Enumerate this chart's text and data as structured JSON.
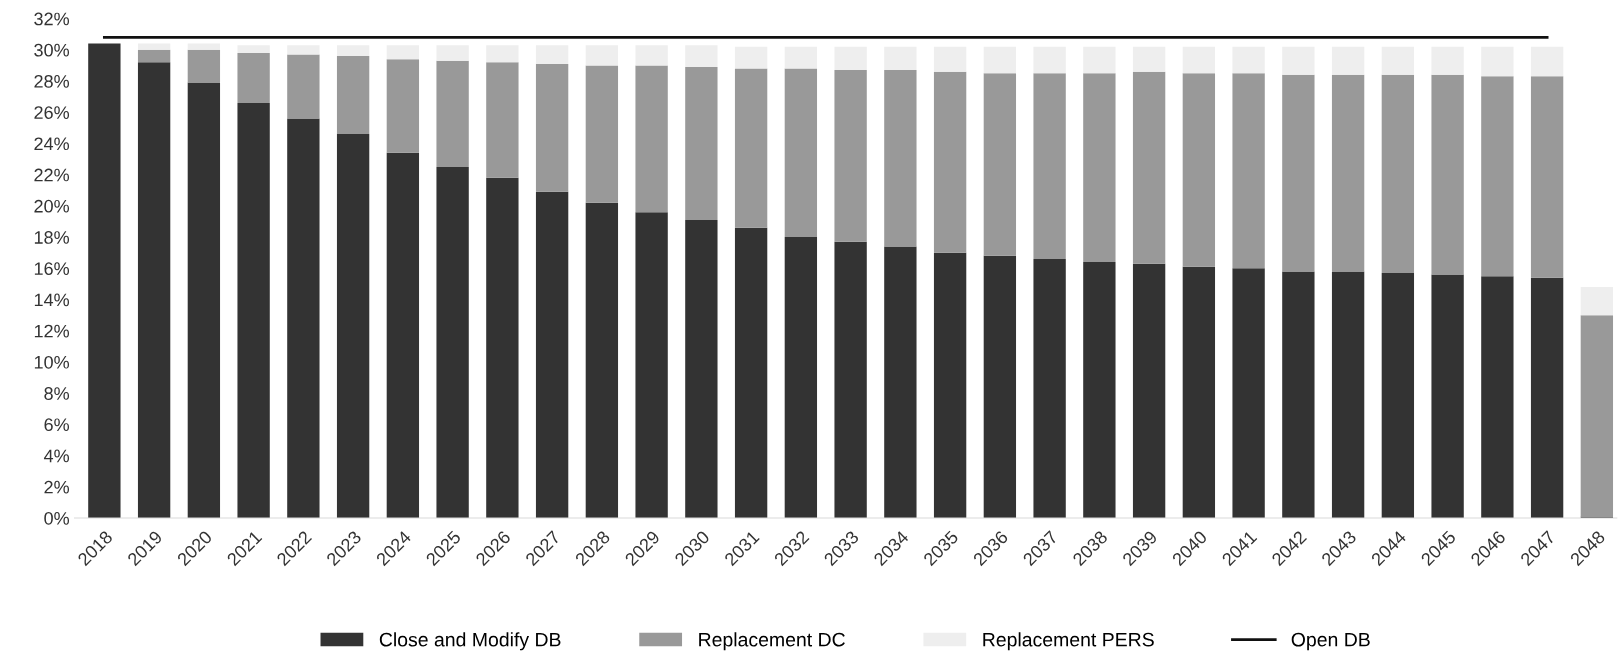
{
  "chart_data": {
    "type": "bar",
    "stacked": true,
    "categories": [
      "2018",
      "2019",
      "2020",
      "2021",
      "2022",
      "2023",
      "2024",
      "2025",
      "2026",
      "2027",
      "2028",
      "2029",
      "2030",
      "2031",
      "2032",
      "2033",
      "2034",
      "2035",
      "2036",
      "2037",
      "2038",
      "2039",
      "2040",
      "2041",
      "2042",
      "2043",
      "2044",
      "2045",
      "2046",
      "2047",
      "2048"
    ],
    "series": [
      {
        "name": "Close and Modify DB",
        "color": "#333333",
        "values": [
          30.4,
          29.2,
          27.9,
          26.6,
          25.6,
          24.6,
          23.4,
          22.5,
          21.8,
          20.9,
          20.2,
          19.6,
          19.1,
          18.6,
          18.0,
          17.7,
          17.4,
          17.0,
          16.8,
          16.6,
          16.4,
          16.3,
          16.1,
          16.0,
          15.8,
          15.8,
          15.7,
          15.6,
          15.5,
          15.4,
          0.1
        ]
      },
      {
        "name": "Replacement DC",
        "color": "#999999",
        "values": [
          0,
          0.8,
          2.1,
          3.2,
          4.1,
          5.0,
          6.0,
          6.8,
          7.4,
          8.2,
          8.8,
          9.4,
          9.8,
          10.2,
          10.8,
          11.0,
          11.3,
          11.6,
          11.7,
          11.9,
          12.1,
          12.3,
          12.4,
          12.5,
          12.6,
          12.6,
          12.7,
          12.8,
          12.8,
          12.9,
          12.9
        ]
      },
      {
        "name": "Replacement PERS",
        "color": "#eeeeee",
        "values": [
          0,
          0.4,
          0.4,
          0.5,
          0.6,
          0.7,
          0.9,
          1.0,
          1.1,
          1.2,
          1.3,
          1.3,
          1.4,
          1.4,
          1.4,
          1.5,
          1.5,
          1.6,
          1.7,
          1.7,
          1.7,
          1.6,
          1.7,
          1.7,
          1.8,
          1.8,
          1.8,
          1.8,
          1.9,
          1.9,
          1.8
        ]
      },
      {
        "name": "Open DB",
        "type": "line",
        "color": "#111111",
        "values": [
          30.8,
          30.8,
          30.8,
          30.8,
          30.8,
          30.8,
          30.8,
          30.8,
          30.8,
          30.8,
          30.8,
          30.8,
          30.8,
          30.8,
          30.8,
          30.8,
          30.8,
          30.8,
          30.8,
          30.8,
          30.8,
          30.8,
          30.8,
          30.8,
          30.8,
          30.8,
          30.8,
          30.8,
          30.8,
          30.8,
          null
        ]
      }
    ],
    "ylim": [
      0,
      32
    ],
    "yticks": [
      {
        "value": 0,
        "label": "0%"
      },
      {
        "value": 2,
        "label": "2%"
      },
      {
        "value": 4,
        "label": "4%"
      },
      {
        "value": 6,
        "label": "6%"
      },
      {
        "value": 8,
        "label": "8%"
      },
      {
        "value": 10,
        "label": "10%"
      },
      {
        "value": 12,
        "label": "12%"
      },
      {
        "value": 14,
        "label": "14%"
      },
      {
        "value": 16,
        "label": "16%"
      },
      {
        "value": 18,
        "label": "18%"
      },
      {
        "value": 20,
        "label": "20%"
      },
      {
        "value": 22,
        "label": "22%"
      },
      {
        "value": 24,
        "label": "24%"
      },
      {
        "value": 26,
        "label": "26%"
      },
      {
        "value": 28,
        "label": "28%"
      },
      {
        "value": 30,
        "label": "30%"
      },
      {
        "value": 32,
        "label": "32%"
      }
    ],
    "grid": false,
    "legend": "bottom"
  }
}
